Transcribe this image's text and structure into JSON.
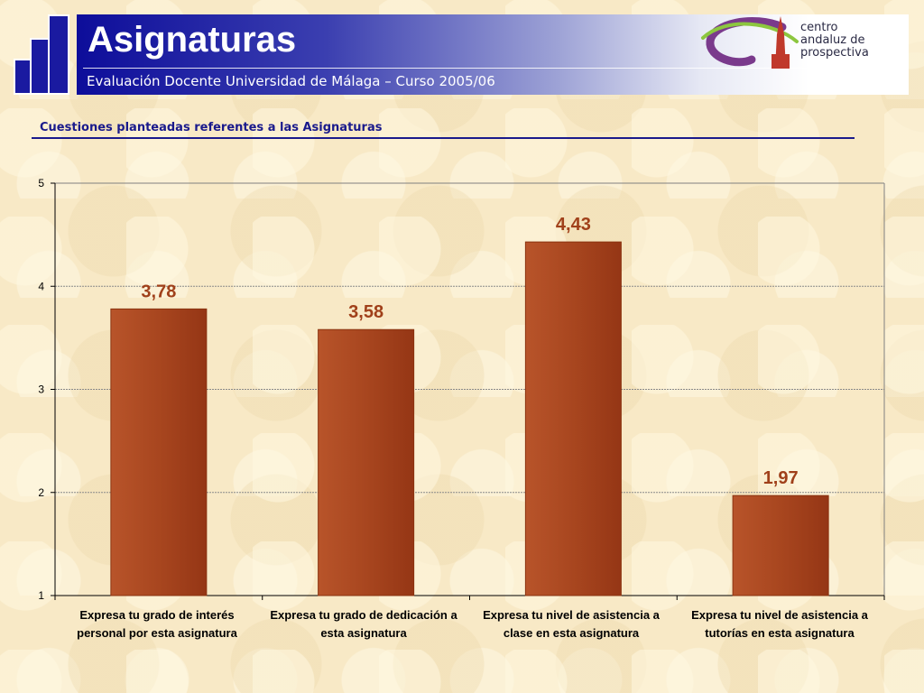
{
  "header": {
    "title": "Asignaturas",
    "subtitle": "Evaluación Docente Universidad de Málaga – Curso 2005/06",
    "logo_text": [
      "centro",
      "andaluz de",
      "prospectiva"
    ]
  },
  "section_title": "Cuestiones planteadas referentes a las Asignaturas",
  "colors": {
    "header_blue": "#0d0d9a",
    "bar_fill": "#a8461f",
    "bar_edge": "#8a3310",
    "value_label": "#a0401a",
    "section_title": "#1a1a8c"
  },
  "chart_data": {
    "type": "bar",
    "title": "",
    "xlabel": "",
    "ylabel": "",
    "categories": [
      "Expresa tu grado de interés personal por esta asignatura",
      "Expresa tu grado de dedicación a esta asignatura",
      "Expresa tu nivel de asistencia a clase en esta asignatura",
      "Expresa tu nivel de asistencia a tutorías en esta asignatura"
    ],
    "values": [
      3.78,
      3.58,
      4.43,
      1.97
    ],
    "value_labels": [
      "3,78",
      "3,58",
      "4,43",
      "1,97"
    ],
    "ylim": [
      1,
      5
    ],
    "yticks": [
      "1",
      "2",
      "3",
      "4",
      "5"
    ],
    "grid": true,
    "legend": "none"
  }
}
